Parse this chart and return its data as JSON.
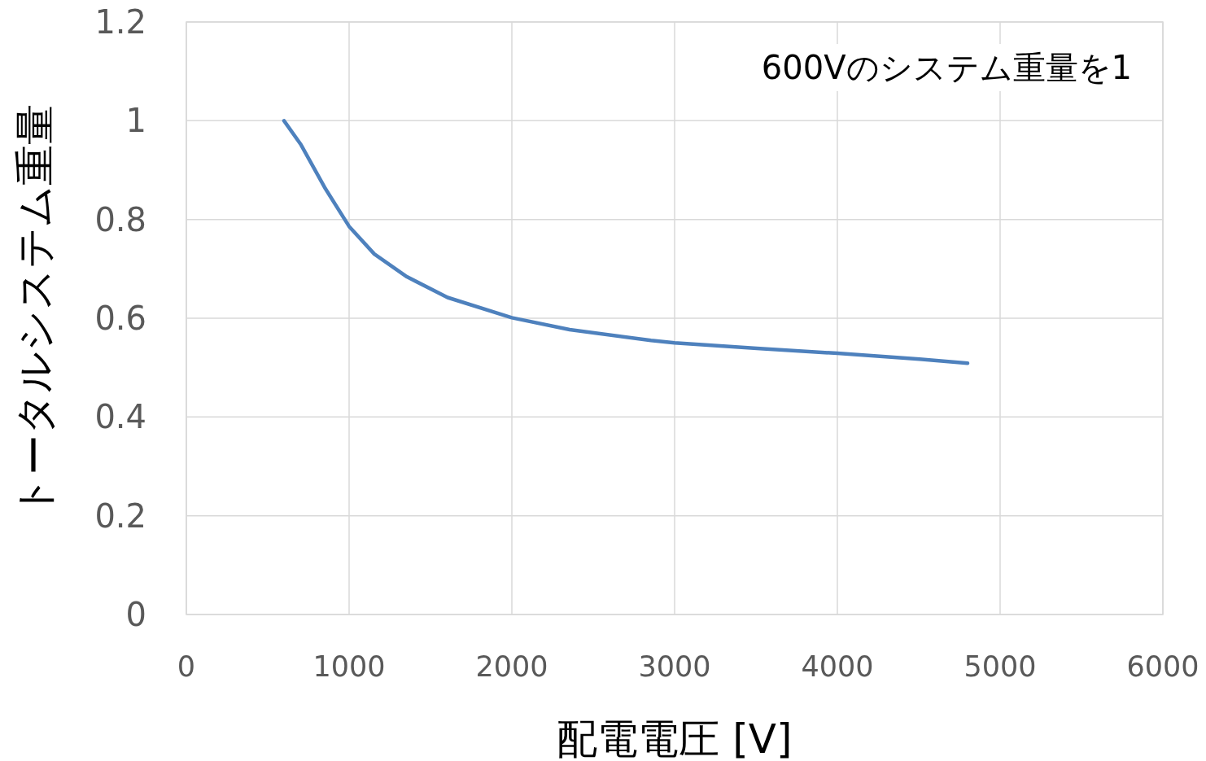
{
  "chart_data": {
    "type": "line",
    "xlabel": "配電電圧 [V]",
    "ylabel": "トータルシステム重量",
    "annotations": [
      "600Vのシステム重量を1"
    ],
    "x": [
      600,
      705,
      855,
      1000,
      1155,
      1355,
      1605,
      2000,
      2355,
      2855,
      3000,
      3505,
      4000,
      4505,
      4800
    ],
    "values": [
      1.0,
      0.951,
      0.862,
      0.786,
      0.73,
      0.684,
      0.642,
      0.601,
      0.577,
      0.555,
      0.55,
      0.539,
      0.529,
      0.517,
      0.509
    ],
    "color": "#4e81bd",
    "xlim": [
      0,
      6000
    ],
    "xticks": [
      0,
      1000,
      2000,
      3000,
      4000,
      5000,
      6000
    ],
    "ylim": [
      0,
      1.2
    ],
    "yticks": [
      0,
      0.2,
      0.4,
      0.6,
      0.8,
      1,
      1.2
    ],
    "grid": true
  }
}
